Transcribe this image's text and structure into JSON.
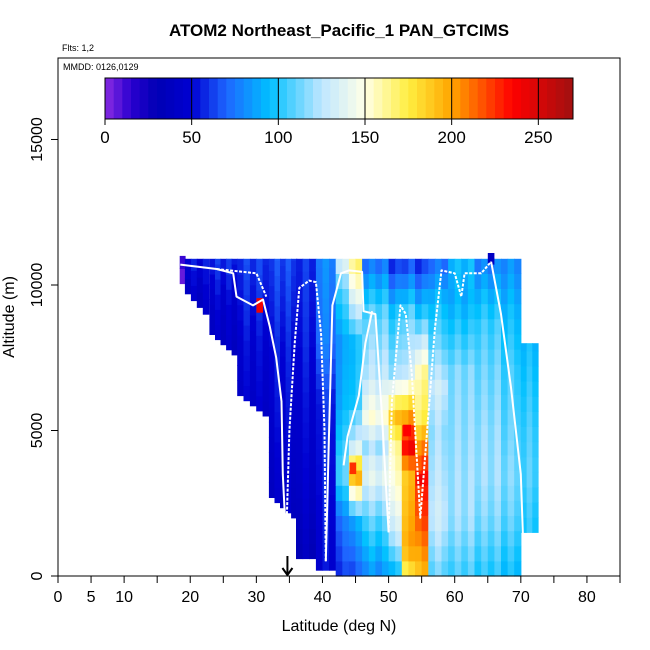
{
  "chart_data": {
    "type": "heatmap",
    "title": "ATOM2 Northeast_Pacific_1 PAN_GTCIMS",
    "flights_label": "Flts: 1,2",
    "dates_label": "MMDD: 0126,0129",
    "xlabel": "Latitude (deg N)",
    "ylabel": "Altitude (m)",
    "xlim": [
      0,
      85
    ],
    "ylim": [
      0,
      17800
    ],
    "x_ticks": [
      0,
      5,
      10,
      20,
      30,
      40,
      50,
      60,
      70,
      80
    ],
    "x_minor_ticks": [
      15,
      25,
      35,
      45,
      55,
      65,
      75,
      85
    ],
    "y_ticks": [
      0,
      5000,
      10000,
      15000
    ],
    "colorbar": {
      "range": [
        0,
        270
      ],
      "ticks": [
        0,
        50,
        100,
        150,
        200,
        250
      ],
      "stops": [
        {
          "v": 0,
          "c": "#8a2be2"
        },
        {
          "v": 15,
          "c": "#2a00d0"
        },
        {
          "v": 30,
          "c": "#0000b4"
        },
        {
          "v": 50,
          "c": "#0000d2"
        },
        {
          "v": 70,
          "c": "#1e66ff"
        },
        {
          "v": 95,
          "c": "#00c0ff"
        },
        {
          "v": 125,
          "c": "#bfe6ff"
        },
        {
          "v": 150,
          "c": "#ffffe6"
        },
        {
          "v": 175,
          "c": "#ffee40"
        },
        {
          "v": 200,
          "c": "#ffa500"
        },
        {
          "v": 235,
          "c": "#ff0000"
        },
        {
          "v": 270,
          "c": "#a01010"
        }
      ]
    },
    "marker_latitude": 34.7,
    "columns": [
      {
        "lat": 18.8,
        "w": 0.8,
        "bottom": 9700,
        "top": 11000,
        "profile": [
          [
            10000,
            5
          ],
          [
            11000,
            20
          ]
        ]
      },
      {
        "lat": 21.0,
        "w": 3.6,
        "bottom": 9000,
        "top": 10900,
        "profile": [
          [
            9000,
            40
          ],
          [
            10000,
            45
          ],
          [
            10900,
            55
          ]
        ]
      },
      {
        "lat": 25.0,
        "w": 4.2,
        "bottom": 7600,
        "top": 10900,
        "profile": [
          [
            7600,
            40
          ],
          [
            9500,
            48
          ],
          [
            10900,
            60
          ]
        ]
      },
      {
        "lat": 29.5,
        "w": 4.8,
        "bottom": 5500,
        "top": 10900,
        "profile": [
          [
            5500,
            45
          ],
          [
            8000,
            50
          ],
          [
            9000,
            55
          ],
          [
            10900,
            62
          ]
        ]
      },
      {
        "lat": 34.0,
        "w": 4.2,
        "bottom": 2000,
        "top": 10900,
        "profile": [
          [
            2000,
            40
          ],
          [
            5000,
            48
          ],
          [
            8000,
            55
          ],
          [
            10900,
            65
          ]
        ]
      },
      {
        "lat": 37.5,
        "w": 3.0,
        "bottom": 600,
        "top": 10900,
        "profile": [
          [
            600,
            35
          ],
          [
            3000,
            45
          ],
          [
            6000,
            50
          ],
          [
            8000,
            55
          ],
          [
            10900,
            60
          ]
        ]
      },
      {
        "lat": 40.5,
        "w": 3.0,
        "bottom": 200,
        "top": 10900,
        "profile": [
          [
            200,
            50
          ],
          [
            3000,
            55
          ],
          [
            6000,
            58
          ],
          [
            8000,
            75
          ],
          [
            10900,
            80
          ]
        ]
      },
      {
        "lat": 43.0,
        "w": 2.0,
        "bottom": 0,
        "top": 10900,
        "profile": [
          [
            0,
            60
          ],
          [
            2000,
            75
          ],
          [
            3500,
            110
          ],
          [
            6000,
            90
          ],
          [
            8000,
            85
          ],
          [
            10000,
            110
          ],
          [
            10900,
            140
          ]
        ]
      },
      {
        "lat": 45.0,
        "w": 2.0,
        "bottom": 0,
        "top": 10900,
        "profile": [
          [
            0,
            65
          ],
          [
            2000,
            90
          ],
          [
            3500,
            200
          ],
          [
            4500,
            130
          ],
          [
            6000,
            100
          ],
          [
            8000,
            95
          ],
          [
            10000,
            150
          ],
          [
            10900,
            170
          ]
        ]
      },
      {
        "lat": 48.0,
        "w": 4.0,
        "bottom": 0,
        "top": 10900,
        "profile": [
          [
            0,
            80
          ],
          [
            2000,
            110
          ],
          [
            3500,
            140
          ],
          [
            4500,
            120
          ],
          [
            5500,
            150
          ],
          [
            7000,
            125
          ],
          [
            9000,
            110
          ],
          [
            10000,
            90
          ],
          [
            10900,
            70
          ]
        ]
      },
      {
        "lat": 51.0,
        "w": 2.0,
        "bottom": 0,
        "top": 10900,
        "profile": [
          [
            0,
            90
          ],
          [
            1500,
            130
          ],
          [
            3000,
            150
          ],
          [
            4500,
            160
          ],
          [
            5500,
            190
          ],
          [
            7000,
            120
          ],
          [
            9000,
            100
          ],
          [
            10900,
            55
          ]
        ]
      },
      {
        "lat": 53.0,
        "w": 2.0,
        "bottom": 0,
        "top": 10900,
        "profile": [
          [
            0,
            170
          ],
          [
            1000,
            200
          ],
          [
            2000,
            195
          ],
          [
            3500,
            190
          ],
          [
            4500,
            240
          ],
          [
            5500,
            200
          ],
          [
            7000,
            130
          ],
          [
            9000,
            110
          ],
          [
            10900,
            60
          ]
        ]
      },
      {
        "lat": 55.0,
        "w": 2.0,
        "bottom": 0,
        "top": 10900,
        "profile": [
          [
            0,
            190
          ],
          [
            1000,
            205
          ],
          [
            2000,
            220
          ],
          [
            3500,
            230
          ],
          [
            4500,
            205
          ],
          [
            5500,
            170
          ],
          [
            7000,
            160
          ],
          [
            9000,
            100
          ],
          [
            10900,
            55
          ]
        ]
      },
      {
        "lat": 57.5,
        "w": 3.0,
        "bottom": 0,
        "top": 10900,
        "profile": [
          [
            0,
            110
          ],
          [
            2000,
            130
          ],
          [
            3500,
            125
          ],
          [
            5000,
            120
          ],
          [
            6500,
            130
          ],
          [
            8000,
            110
          ],
          [
            9500,
            95
          ],
          [
            10900,
            70
          ]
        ]
      },
      {
        "lat": 61.0,
        "w": 4.0,
        "bottom": 0,
        "top": 10900,
        "profile": [
          [
            0,
            105
          ],
          [
            2000,
            120
          ],
          [
            3500,
            120
          ],
          [
            5000,
            118
          ],
          [
            7000,
            115
          ],
          [
            8500,
            100
          ],
          [
            9500,
            90
          ],
          [
            10900,
            95
          ]
        ]
      },
      {
        "lat": 65.0,
        "w": 4.0,
        "bottom": 0,
        "top": 10900,
        "profile": [
          [
            0,
            100
          ],
          [
            2000,
            115
          ],
          [
            3500,
            120
          ],
          [
            5000,
            118
          ],
          [
            7000,
            112
          ],
          [
            8500,
            105
          ],
          [
            9500,
            95
          ],
          [
            10900,
            75
          ]
        ]
      },
      {
        "lat": 68.5,
        "w": 3.0,
        "bottom": 0,
        "top": 10900,
        "profile": [
          [
            0,
            95
          ],
          [
            2000,
            110
          ],
          [
            3500,
            115
          ],
          [
            5000,
            110
          ],
          [
            7000,
            105
          ],
          [
            9000,
            95
          ],
          [
            10900,
            80
          ]
        ]
      },
      {
        "lat": 71.3,
        "w": 2.6,
        "bottom": 1500,
        "top": 8000,
        "profile": [
          [
            1500,
            100
          ],
          [
            3500,
            108
          ],
          [
            5000,
            105
          ],
          [
            8000,
            95
          ]
        ]
      }
    ],
    "patches": [
      {
        "lat": 30.5,
        "w": 1.0,
        "alt": 9300,
        "h": 500,
        "v": 240
      },
      {
        "lat": 52.8,
        "w": 1.2,
        "alt": 5000,
        "h": 400,
        "v": 235
      },
      {
        "lat": 54.8,
        "w": 1.2,
        "alt": 3300,
        "h": 400,
        "v": 240
      },
      {
        "lat": 44.6,
        "w": 1.0,
        "alt": 3700,
        "h": 400,
        "v": 225
      },
      {
        "lat": 65.5,
        "w": 1.0,
        "alt": 10900,
        "h": 400,
        "v": 40
      }
    ],
    "flight_tracks": [
      [
        [
          18.5,
          10700
        ],
        [
          24.0,
          10550
        ],
        [
          26.5,
          10400
        ],
        [
          27.0,
          9600
        ],
        [
          29.5,
          9300
        ],
        [
          31.0,
          9500
        ],
        [
          32.0,
          8600
        ],
        [
          33.0,
          7500
        ],
        [
          33.8,
          6000
        ],
        [
          34.0,
          3500
        ],
        [
          34.5,
          1200
        ]
      ],
      [
        [
          34.5,
          1200
        ],
        [
          35.0,
          5000
        ],
        [
          35.8,
          8000
        ],
        [
          36.5,
          9900
        ],
        [
          38.0,
          10150
        ],
        [
          39.0,
          10100
        ],
        [
          39.8,
          8300
        ],
        [
          40.3,
          5000
        ],
        [
          40.5,
          500
        ]
      ],
      [
        [
          40.5,
          500
        ],
        [
          41.0,
          5000
        ],
        [
          41.5,
          9300
        ],
        [
          42.8,
          10400
        ],
        [
          44.0,
          10500
        ],
        [
          46.0,
          10450
        ],
        [
          46.2,
          9100
        ],
        [
          48.0,
          9000
        ],
        [
          49.0,
          5500
        ],
        [
          50.0,
          1500
        ]
      ],
      [
        [
          50.0,
          1500
        ],
        [
          50.5,
          6000
        ],
        [
          51.8,
          9300
        ],
        [
          52.6,
          9000
        ],
        [
          53.5,
          7000
        ],
        [
          54.8,
          2000
        ],
        [
          56.0,
          5500
        ],
        [
          57.0,
          8500
        ],
        [
          58.0,
          10500
        ],
        [
          60.0,
          10400
        ],
        [
          61.0,
          9600
        ],
        [
          61.5,
          10400
        ],
        [
          64.0,
          10400
        ],
        [
          65.5,
          10800
        ]
      ],
      [
        [
          65.5,
          10800
        ],
        [
          67.0,
          9000
        ],
        [
          68.5,
          6500
        ],
        [
          70.0,
          3500
        ],
        [
          70.5,
          200
        ]
      ],
      [
        [
          24.0,
          10550
        ],
        [
          30.0,
          10400
        ],
        [
          31.5,
          9600
        ]
      ],
      [
        [
          43.2,
          3800
        ],
        [
          43.8,
          4800
        ],
        [
          45.5,
          6200
        ],
        [
          46.5,
          8000
        ],
        [
          47.5,
          9100
        ]
      ]
    ]
  }
}
